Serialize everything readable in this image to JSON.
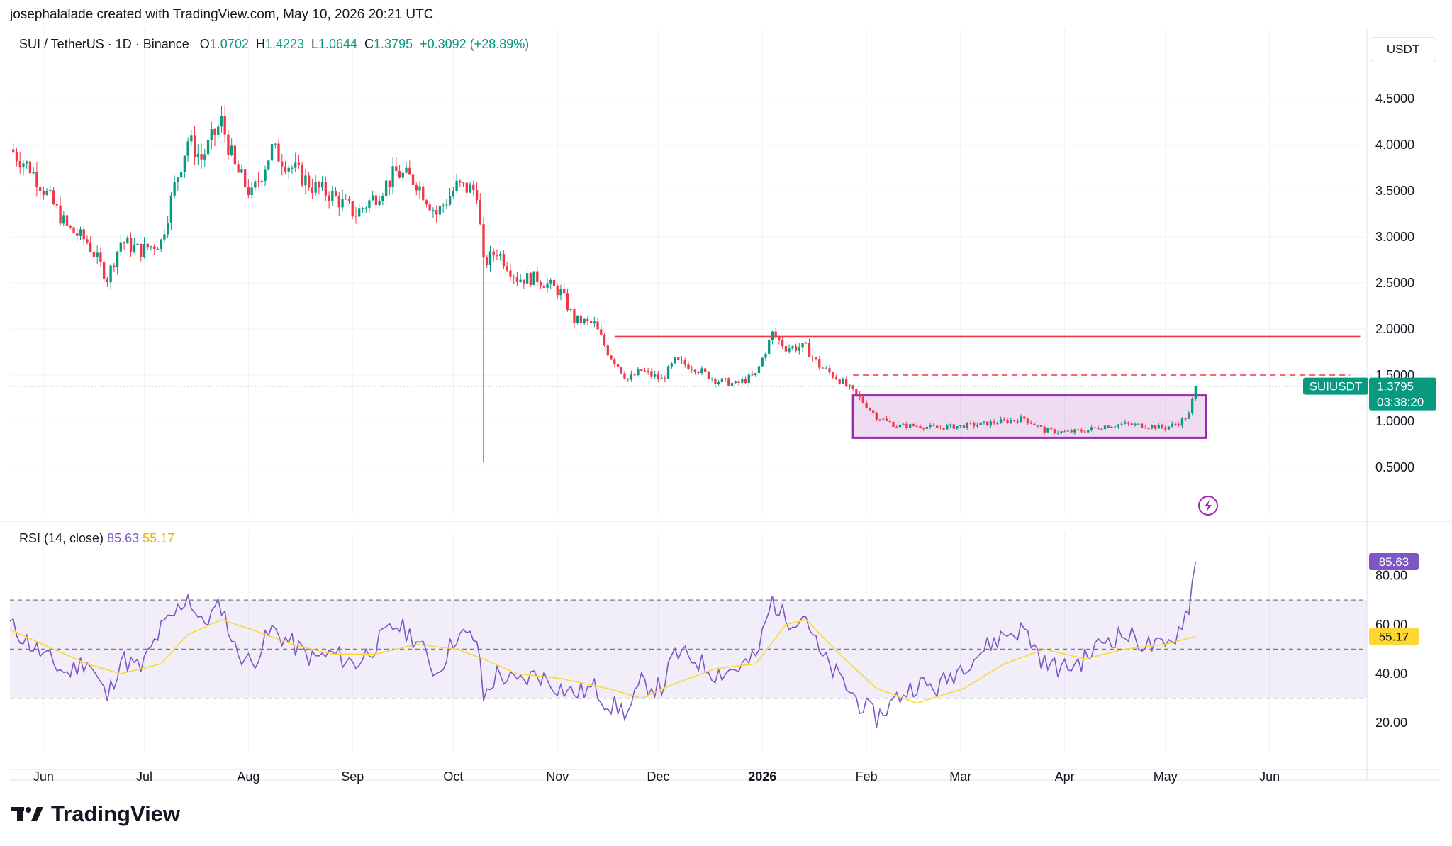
{
  "header": {
    "attribution": "josephalalade created with TradingView.com, May 10, 2026 20:21 UTC"
  },
  "legend": {
    "symbol": "SUI / TetherUS · 1D · Binance",
    "o_label": "O",
    "o": "1.0702",
    "h_label": "H",
    "h": "1.4223",
    "l_label": "L",
    "l": "1.0644",
    "c_label": "C",
    "c": "1.3795",
    "change": "+0.3092 (+28.89%)"
  },
  "currency": "USDT",
  "price_axis_labels": [
    "4.5000",
    "4.0000",
    "3.5000",
    "3.0000",
    "2.5000",
    "2.0000",
    "1.5000",
    "1.0000",
    "0.5000"
  ],
  "price_tag": {
    "symbol": "SUIUSDT",
    "price": "1.3795",
    "countdown": "03:38:20"
  },
  "rsi_legend": {
    "label": "RSI (14, close)",
    "rsi": "85.63",
    "ma": "55.17"
  },
  "rsi_axis_labels": [
    "80.00",
    "60.00",
    "40.00",
    "20.00"
  ],
  "x_labels": [
    "Jun",
    "Jul",
    "Aug",
    "Sep",
    "Oct",
    "Nov",
    "Dec",
    "2026",
    "Feb",
    "Mar",
    "Apr",
    "May",
    "Jun"
  ],
  "brand": {
    "name": "TradingView"
  },
  "colors": {
    "up": "#089981",
    "down": "#f23645",
    "rsi": "#7e57c2",
    "rsi_ma": "#fdd835",
    "box": "#9c27b0",
    "level": "#f23645"
  },
  "icons": {
    "flash": "lightning-bolt-icon",
    "logo": "tradingview-logo-icon"
  },
  "chart_data": [
    {
      "type": "candlestick",
      "title": "SUI / TetherUS · 1D · Binance",
      "ylabel": "USDT",
      "ylim": [
        0.3,
        4.8
      ],
      "price_ticks": [
        0.5,
        1.0,
        1.5,
        2.0,
        2.5,
        3.0,
        3.5,
        4.0,
        4.5
      ],
      "x_range": [
        "2025-05-22",
        "2026-06-30"
      ],
      "close_path": [
        [
          "2025-05-22",
          3.95
        ],
        [
          "2025-05-28",
          3.75
        ],
        [
          "2025-06-04",
          3.35
        ],
        [
          "2025-06-08",
          3.1
        ],
        [
          "2025-06-14",
          2.95
        ],
        [
          "2025-06-20",
          2.55
        ],
        [
          "2025-06-24",
          2.95
        ],
        [
          "2025-06-30",
          2.85
        ],
        [
          "2025-07-06",
          2.95
        ],
        [
          "2025-07-10",
          3.55
        ],
        [
          "2025-07-14",
          4.05
        ],
        [
          "2025-07-18",
          3.85
        ],
        [
          "2025-07-24",
          4.25
        ],
        [
          "2025-07-28",
          3.75
        ],
        [
          "2025-08-02",
          3.45
        ],
        [
          "2025-08-08",
          3.95
        ],
        [
          "2025-08-14",
          3.75
        ],
        [
          "2025-08-20",
          3.55
        ],
        [
          "2025-08-26",
          3.45
        ],
        [
          "2025-09-02",
          3.25
        ],
        [
          "2025-09-08",
          3.45
        ],
        [
          "2025-09-14",
          3.7
        ],
        [
          "2025-09-20",
          3.6
        ],
        [
          "2025-09-26",
          3.25
        ],
        [
          "2025-10-02",
          3.55
        ],
        [
          "2025-10-08",
          3.5
        ],
        [
          "2025-10-10",
          2.7
        ],
        [
          "2025-10-14",
          2.85
        ],
        [
          "2025-10-20",
          2.55
        ],
        [
          "2025-10-26",
          2.55
        ],
        [
          "2025-11-02",
          2.4
        ],
        [
          "2025-11-06",
          2.1
        ],
        [
          "2025-11-12",
          2.05
        ],
        [
          "2025-11-16",
          1.75
        ],
        [
          "2025-11-22",
          1.45
        ],
        [
          "2025-11-26",
          1.55
        ],
        [
          "2025-12-02",
          1.45
        ],
        [
          "2025-12-06",
          1.65
        ],
        [
          "2025-12-12",
          1.58
        ],
        [
          "2025-12-18",
          1.45
        ],
        [
          "2025-12-24",
          1.4
        ],
        [
          "2025-12-30",
          1.5
        ],
        [
          "2026-01-04",
          1.95
        ],
        [
          "2026-01-08",
          1.8
        ],
        [
          "2026-01-14",
          1.8
        ],
        [
          "2026-01-18",
          1.6
        ],
        [
          "2026-01-24",
          1.45
        ],
        [
          "2026-01-30",
          1.25
        ],
        [
          "2026-02-04",
          1.05
        ],
        [
          "2026-02-10",
          0.95
        ],
        [
          "2026-02-16",
          0.95
        ],
        [
          "2026-02-22",
          0.93
        ],
        [
          "2026-03-02",
          0.95
        ],
        [
          "2026-03-08",
          0.97
        ],
        [
          "2026-03-14",
          1.0
        ],
        [
          "2026-03-20",
          1.03
        ],
        [
          "2026-03-26",
          0.9
        ],
        [
          "2026-04-01",
          0.88
        ],
        [
          "2026-04-07",
          0.9
        ],
        [
          "2026-04-13",
          0.95
        ],
        [
          "2026-04-19",
          0.97
        ],
        [
          "2026-04-25",
          0.95
        ],
        [
          "2026-05-01",
          0.93
        ],
        [
          "2026-05-05",
          0.98
        ],
        [
          "2026-05-08",
          1.07
        ],
        [
          "2026-05-10",
          1.3795
        ]
      ],
      "wick_low": {
        "date": "2025-10-10",
        "value": 0.55
      },
      "resistance_line": {
        "value": 1.92,
        "from": "2025-11-18",
        "to": "2026-06-28",
        "style": "solid"
      },
      "dashed_level": {
        "value": 1.5,
        "from": "2026-01-28",
        "to": "2026-06-25",
        "style": "dashed"
      },
      "range_box": {
        "from": "2026-01-28",
        "to": "2026-05-13",
        "low": 0.82,
        "high": 1.28
      },
      "current_price": 1.3795
    },
    {
      "type": "line",
      "title": "RSI (14, close)",
      "ylim": [
        14,
        92
      ],
      "ticks": [
        20,
        40,
        60,
        80
      ],
      "bands": {
        "upper": 70,
        "middle": 50,
        "lower": 30
      },
      "series": [
        {
          "name": "RSI",
          "values": [
            [
              "2025-05-22",
              60
            ],
            [
              "2025-05-28",
              52
            ],
            [
              "2025-06-04",
              44
            ],
            [
              "2025-06-08",
              40
            ],
            [
              "2025-06-14",
              46
            ],
            [
              "2025-06-20",
              30
            ],
            [
              "2025-06-24",
              46
            ],
            [
              "2025-06-30",
              42
            ],
            [
              "2025-07-06",
              58
            ],
            [
              "2025-07-10",
              64
            ],
            [
              "2025-07-14",
              72
            ],
            [
              "2025-07-18",
              60
            ],
            [
              "2025-07-24",
              68
            ],
            [
              "2025-07-28",
              50
            ],
            [
              "2025-08-02",
              44
            ],
            [
              "2025-08-08",
              58
            ],
            [
              "2025-08-14",
              52
            ],
            [
              "2025-08-20",
              46
            ],
            [
              "2025-08-26",
              48
            ],
            [
              "2025-09-02",
              44
            ],
            [
              "2025-09-08",
              52
            ],
            [
              "2025-09-14",
              60
            ],
            [
              "2025-09-20",
              54
            ],
            [
              "2025-09-26",
              40
            ],
            [
              "2025-10-02",
              56
            ],
            [
              "2025-10-08",
              54
            ],
            [
              "2025-10-10",
              30
            ],
            [
              "2025-10-14",
              40
            ],
            [
              "2025-10-20",
              36
            ],
            [
              "2025-10-26",
              40
            ],
            [
              "2025-11-02",
              34
            ],
            [
              "2025-11-06",
              32
            ],
            [
              "2025-11-12",
              34
            ],
            [
              "2025-11-16",
              28
            ],
            [
              "2025-11-22",
              24
            ],
            [
              "2025-11-26",
              36
            ],
            [
              "2025-12-02",
              34
            ],
            [
              "2025-12-06",
              48
            ],
            [
              "2025-12-12",
              46
            ],
            [
              "2025-12-18",
              40
            ],
            [
              "2025-12-24",
              42
            ],
            [
              "2025-12-30",
              46
            ],
            [
              "2026-01-04",
              70
            ],
            [
              "2026-01-08",
              62
            ],
            [
              "2026-01-14",
              64
            ],
            [
              "2026-01-18",
              48
            ],
            [
              "2026-01-24",
              38
            ],
            [
              "2026-01-30",
              28
            ],
            [
              "2026-02-04",
              22
            ],
            [
              "2026-02-10",
              30
            ],
            [
              "2026-02-16",
              36
            ],
            [
              "2026-02-22",
              34
            ],
            [
              "2026-03-02",
              44
            ],
            [
              "2026-03-08",
              50
            ],
            [
              "2026-03-14",
              56
            ],
            [
              "2026-03-20",
              58
            ],
            [
              "2026-03-26",
              44
            ],
            [
              "2026-04-01",
              42
            ],
            [
              "2026-04-07",
              46
            ],
            [
              "2026-04-13",
              54
            ],
            [
              "2026-04-19",
              56
            ],
            [
              "2026-04-25",
              52
            ],
            [
              "2026-05-01",
              50
            ],
            [
              "2026-05-05",
              58
            ],
            [
              "2026-05-08",
              68
            ],
            [
              "2026-05-10",
              85.63
            ]
          ]
        },
        {
          "name": "RSI MA",
          "values": [
            [
              "2025-05-22",
              58
            ],
            [
              "2025-06-04",
              50
            ],
            [
              "2025-06-14",
              44
            ],
            [
              "2025-06-24",
              40
            ],
            [
              "2025-07-06",
              44
            ],
            [
              "2025-07-14",
              56
            ],
            [
              "2025-07-24",
              62
            ],
            [
              "2025-08-02",
              58
            ],
            [
              "2025-08-14",
              52
            ],
            [
              "2025-08-26",
              48
            ],
            [
              "2025-09-08",
              48
            ],
            [
              "2025-09-20",
              52
            ],
            [
              "2025-10-02",
              50
            ],
            [
              "2025-10-10",
              46
            ],
            [
              "2025-10-20",
              40
            ],
            [
              "2025-11-02",
              38
            ],
            [
              "2025-11-16",
              34
            ],
            [
              "2025-11-26",
              30
            ],
            [
              "2025-12-06",
              36
            ],
            [
              "2025-12-18",
              42
            ],
            [
              "2025-12-30",
              44
            ],
            [
              "2026-01-08",
              60
            ],
            [
              "2026-01-14",
              62
            ],
            [
              "2026-01-24",
              48
            ],
            [
              "2026-02-04",
              34
            ],
            [
              "2026-02-16",
              28
            ],
            [
              "2026-03-02",
              34
            ],
            [
              "2026-03-14",
              44
            ],
            [
              "2026-03-26",
              50
            ],
            [
              "2026-04-07",
              46
            ],
            [
              "2026-04-19",
              50
            ],
            [
              "2026-05-01",
              52
            ],
            [
              "2026-05-10",
              55.17
            ]
          ]
        }
      ]
    }
  ]
}
